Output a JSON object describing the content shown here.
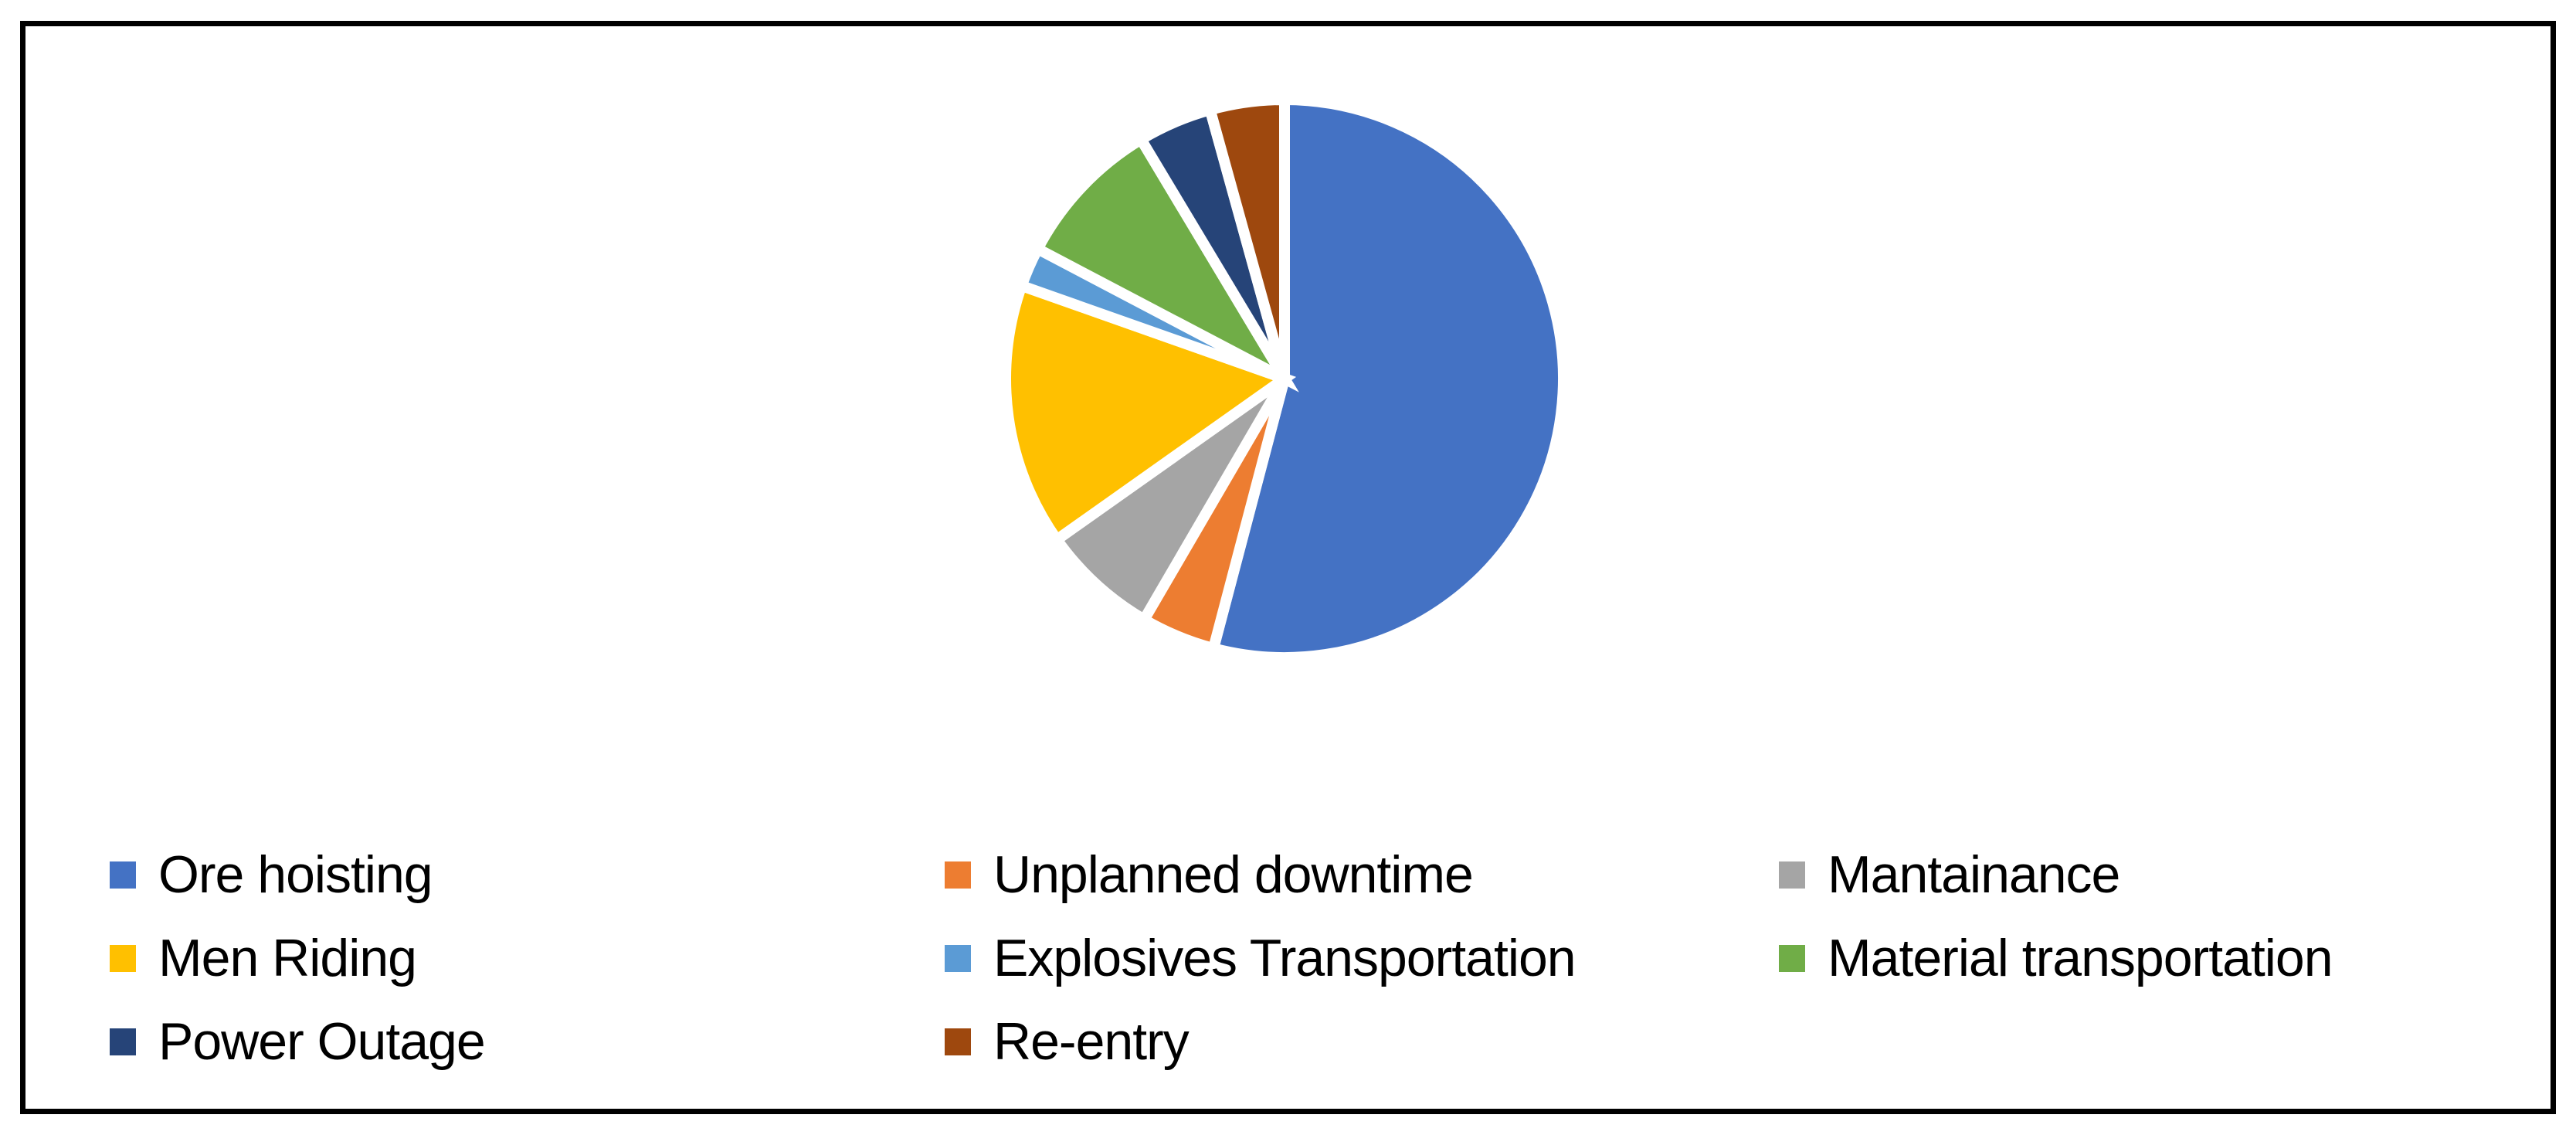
{
  "chart_data": {
    "type": "pie",
    "title": "",
    "legend_position": "bottom",
    "legend_columns": 3,
    "start_angle_deg": 0,
    "direction": "clockwise",
    "slice_border_color": "#FFFFFF",
    "background_color": "#FFFFFF",
    "frame_border_color": "#000000",
    "slices": [
      {
        "label": "Ore hoisting",
        "value_pct": 54.1,
        "color": "#4472C4"
      },
      {
        "label": "Unplanned downtime",
        "value_pct": 4.3,
        "color": "#ED7D31"
      },
      {
        "label": "Mantainance",
        "value_pct": 6.8,
        "color": "#A5A5A5"
      },
      {
        "label": "Men Riding",
        "value_pct": 15.2,
        "color": "#FFC000"
      },
      {
        "label": "Explosives Transportation",
        "value_pct": 2.3,
        "color": "#5B9BD5"
      },
      {
        "label": "Material transportation",
        "value_pct": 8.7,
        "color": "#70AD47"
      },
      {
        "label": "Power Outage",
        "value_pct": 4.3,
        "color": "#264478"
      },
      {
        "label": "Re-entry",
        "value_pct": 4.3,
        "color": "#9E480E"
      }
    ]
  }
}
